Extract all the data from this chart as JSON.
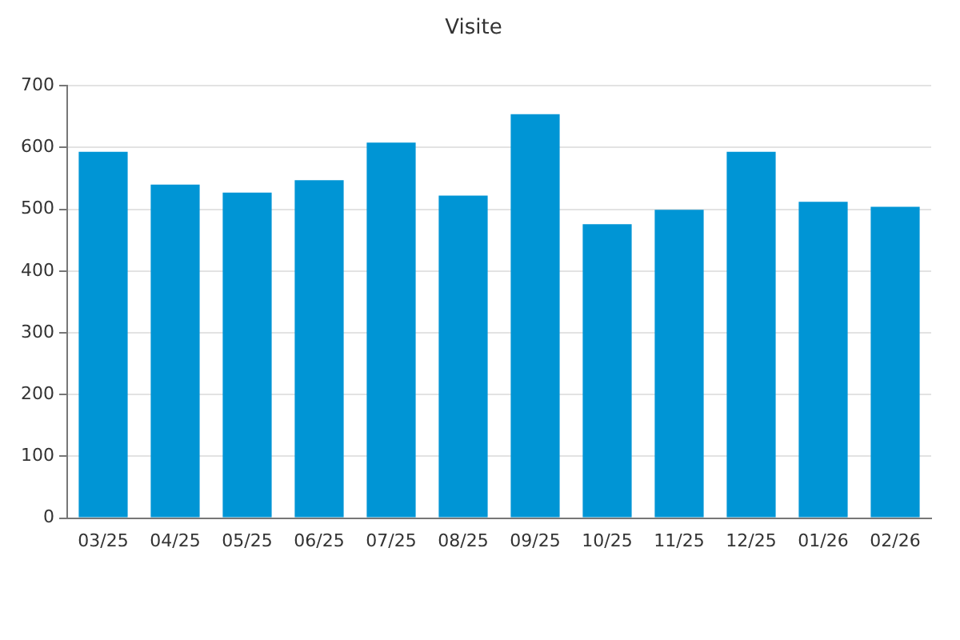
{
  "chart_data": {
    "type": "bar",
    "title": "Visite",
    "categories": [
      "03/25",
      "04/25",
      "05/25",
      "06/25",
      "07/25",
      "08/25",
      "09/25",
      "10/25",
      "11/25",
      "12/25",
      "01/26",
      "02/26"
    ],
    "values": [
      593,
      540,
      527,
      547,
      608,
      522,
      654,
      476,
      499,
      593,
      512,
      504
    ],
    "color": "#0095d5",
    "ylim": [
      0,
      700
    ],
    "yticks": [
      0,
      100,
      200,
      300,
      400,
      500,
      600,
      700
    ],
    "grid": "y",
    "legend": false
  }
}
